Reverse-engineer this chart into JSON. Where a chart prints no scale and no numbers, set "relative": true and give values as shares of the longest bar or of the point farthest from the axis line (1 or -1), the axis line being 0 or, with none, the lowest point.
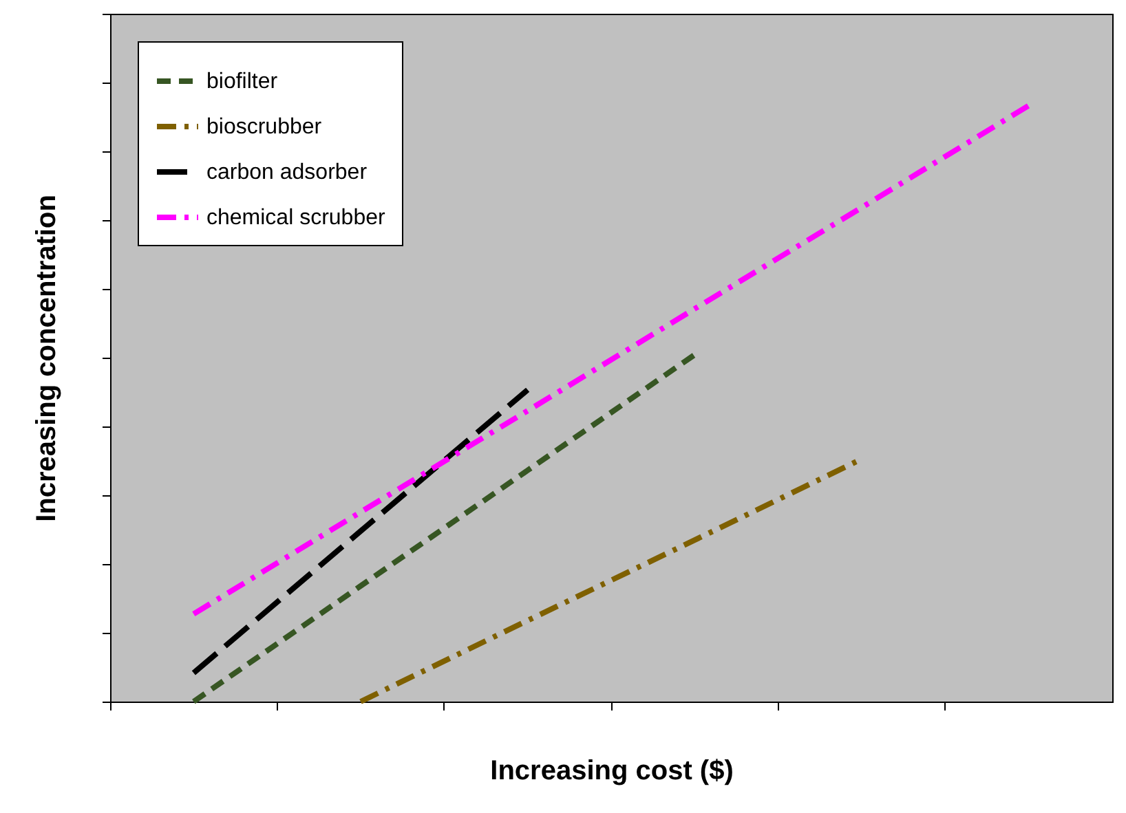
{
  "chart_data": {
    "type": "line",
    "relative": true,
    "xlabel": "Increasing cost ($)",
    "ylabel": "Increasing concentration",
    "categories": [
      null,
      null,
      null,
      null,
      null,
      null
    ],
    "legend": "top left",
    "grid": false,
    "marker": "none",
    "series": [
      {
        "name": "biofilter",
        "color": "#375623",
        "line_style": "dashed",
        "values": [
          0,
          0.194,
          0.388,
          0.582,
          null,
          null
        ]
      },
      {
        "name": "bioscrubber",
        "color": "#7f6000",
        "line_style": "dashdot",
        "values": [
          null,
          0,
          0.136,
          0.271,
          0.407,
          null
        ]
      },
      {
        "name": "carbon adsorber",
        "color": "#000000",
        "line_style": "longdash",
        "values": [
          0.048,
          0.286,
          0.523,
          null,
          null,
          null
        ]
      },
      {
        "name": "chemical scrubber",
        "color": "#ff00ff",
        "line_style": "dashdot",
        "values": [
          0.147,
          0.318,
          0.488,
          0.659,
          0.829,
          1.0
        ]
      }
    ]
  }
}
